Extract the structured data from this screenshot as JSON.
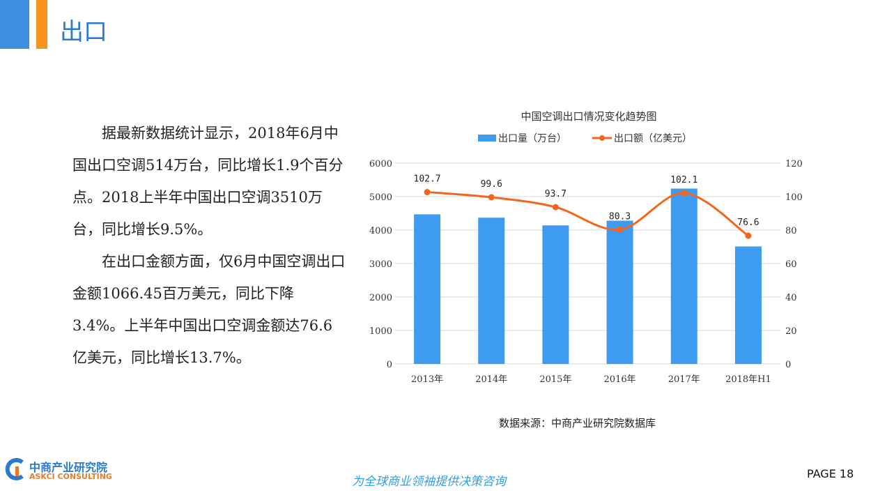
{
  "header": {
    "title": "出口"
  },
  "paragraphs": [
    "据最新数据统计显示，2018年6月中国出口空调514万台，同比增长1.9个百分点。2018上半年中国出口空调3510万台，同比增长9.5%。",
    "在出口金额方面，仅6月中国空调出口金额1066.45百万美元，同比下降3.4%。上半年中国出口空调金额达76.6亿美元，同比增长13.7%。"
  ],
  "chart_data": {
    "type": "bar+line",
    "title": "中国空调出口情况变化趋势图",
    "categories": [
      "2013年",
      "2014年",
      "2015年",
      "2016年",
      "2017年",
      "2018年H1"
    ],
    "series": [
      {
        "name": "出口量（万台）",
        "type": "bar",
        "axis": "left",
        "color": "#3d9bf0",
        "values": [
          4470,
          4370,
          4140,
          4280,
          5240,
          3510
        ]
      },
      {
        "name": "出口额（亿美元）",
        "type": "line",
        "axis": "right",
        "color": "#f4661b",
        "values": [
          102.7,
          99.6,
          93.7,
          80.3,
          102.1,
          76.6
        ],
        "labels": [
          "102.7",
          "99.6",
          "93.7",
          "80.3",
          "102.1",
          "76.6"
        ]
      }
    ],
    "ylim_left": [
      0,
      6000
    ],
    "yticks_left": [
      "0",
      "1000",
      "2000",
      "3000",
      "4000",
      "5000",
      "6000"
    ],
    "ylim_right": [
      0,
      120
    ],
    "yticks_right": [
      "0",
      "20",
      "40",
      "60",
      "80",
      "100",
      "120"
    ],
    "grid": true,
    "legend": "top"
  },
  "source": "数据来源：中商产业研究院数据库",
  "footer": {
    "logo_cn": "中商产业研究院",
    "logo_en": "ASKCI CONSULTING",
    "slogan": "为全球商业领袖提供决策咨询",
    "page": "PAGE 18"
  }
}
